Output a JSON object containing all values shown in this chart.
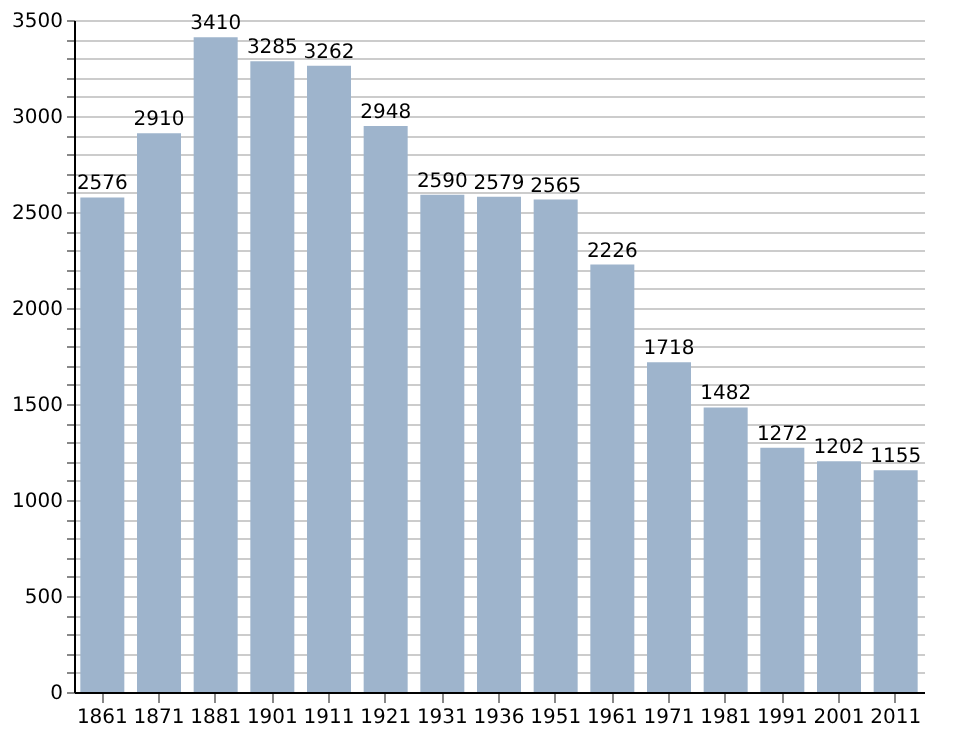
{
  "chart_data": {
    "type": "bar",
    "categories": [
      "1861",
      "1871",
      "1881",
      "1901",
      "1911",
      "1921",
      "1931",
      "1936",
      "1951",
      "1961",
      "1971",
      "1981",
      "1991",
      "2001",
      "2011"
    ],
    "values": [
      2576,
      2910,
      3410,
      3285,
      3262,
      2948,
      2590,
      2579,
      2565,
      2226,
      1718,
      1482,
      1272,
      1202,
      1155
    ],
    "color": "#9eb4cc",
    "data_labels": true,
    "grid": "y",
    "ylim": [
      0,
      3500
    ],
    "yticks": [
      0,
      {
        "value": 100,
        "label": null
      },
      {
        "value": 200,
        "label": null
      },
      {
        "value": 300,
        "label": null
      },
      {
        "value": 400,
        "label": null
      },
      500,
      {
        "value": 600,
        "label": null
      },
      {
        "value": 700,
        "label": null
      },
      {
        "value": 800,
        "label": null
      },
      {
        "value": 900,
        "label": null
      },
      1000,
      {
        "value": 1100,
        "label": null
      },
      {
        "value": 1200,
        "label": null
      },
      {
        "value": 1300,
        "label": null
      },
      {
        "value": 1400,
        "label": null
      },
      1500,
      {
        "value": 1600,
        "label": null
      },
      {
        "value": 1700,
        "label": null
      },
      {
        "value": 1800,
        "label": null
      },
      {
        "value": 1900,
        "label": null
      },
      2000,
      {
        "value": 2100,
        "label": null
      },
      {
        "value": 2200,
        "label": null
      },
      {
        "value": 2300,
        "label": null
      },
      {
        "value": 2400,
        "label": null
      },
      2500,
      {
        "value": 2600,
        "label": null
      },
      {
        "value": 2700,
        "label": null
      },
      {
        "value": 2800,
        "label": null
      },
      {
        "value": 2900,
        "label": null
      },
      3000,
      {
        "value": 3100,
        "label": null
      },
      {
        "value": 3200,
        "label": null
      },
      {
        "value": 3300,
        "label": null
      },
      {
        "value": 3400,
        "label": null
      },
      3500
    ]
  }
}
